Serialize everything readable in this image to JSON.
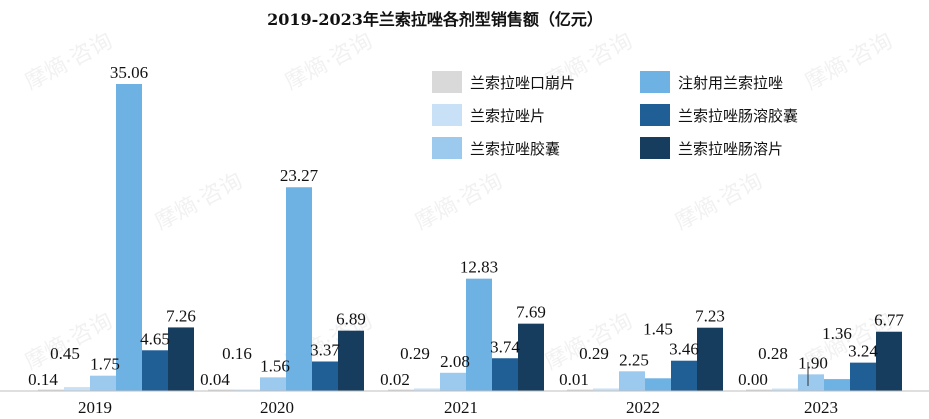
{
  "chart_data": {
    "type": "bar",
    "title": "2019-2023年兰索拉唑各剂型销售额（亿元）",
    "categories": [
      "2019",
      "2020",
      "2021",
      "2022",
      "2023"
    ],
    "series": [
      {
        "name": "兰索拉唑口崩片",
        "color": "#d9d9d9",
        "values": [
          0.14,
          0.04,
          0.02,
          0.01,
          0.0
        ]
      },
      {
        "name": "兰索拉唑片",
        "color": "#c9e1f6",
        "values": [
          0.45,
          0.16,
          0.29,
          0.29,
          0.28
        ]
      },
      {
        "name": "兰索拉唑胶囊",
        "color": "#9cc9ee",
        "values": [
          1.75,
          1.56,
          2.08,
          2.25,
          1.9
        ]
      },
      {
        "name": "注射用兰索拉唑",
        "color": "#6eb1e3",
        "values": [
          35.06,
          23.27,
          12.83,
          1.45,
          1.36
        ]
      },
      {
        "name": "兰索拉唑肠溶胶囊",
        "color": "#1f5f96",
        "values": [
          4.65,
          3.37,
          3.74,
          3.46,
          3.24
        ]
      },
      {
        "name": "兰索拉唑肠溶片",
        "color": "#163c5e",
        "values": [
          7.26,
          6.89,
          7.69,
          7.23,
          6.77
        ]
      }
    ],
    "ylim": [
      0,
      36
    ],
    "grid": false,
    "legend": "top-right",
    "xlabel": "",
    "ylabel": ""
  },
  "watermark": "摩熵·咨询"
}
